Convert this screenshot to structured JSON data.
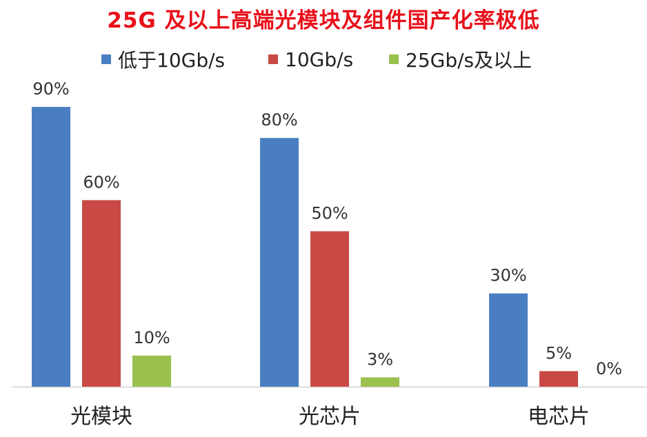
{
  "chart_data": {
    "type": "bar",
    "title": "25G 及以上高端光模块及组件国产化率极低",
    "categories": [
      "光模块",
      "光芯片",
      "电芯片"
    ],
    "series": [
      {
        "name": "低于10Gb/s",
        "values": [
          90,
          80,
          30
        ],
        "labels": [
          "90%",
          "80%",
          "30%"
        ],
        "color": "#4a7ec3"
      },
      {
        "name": "10Gb/s",
        "values": [
          60,
          50,
          5
        ],
        "labels": [
          "60%",
          "50%",
          "5%"
        ],
        "color": "#c94a45"
      },
      {
        "name": "25Gb/s及以上",
        "values": [
          10,
          3,
          0
        ],
        "labels": [
          "10%",
          "3%",
          "0%"
        ],
        "color": "#9ac04e"
      }
    ],
    "unit": "%",
    "ylim": [
      0,
      100
    ],
    "grid": false,
    "legend_position": "top"
  }
}
